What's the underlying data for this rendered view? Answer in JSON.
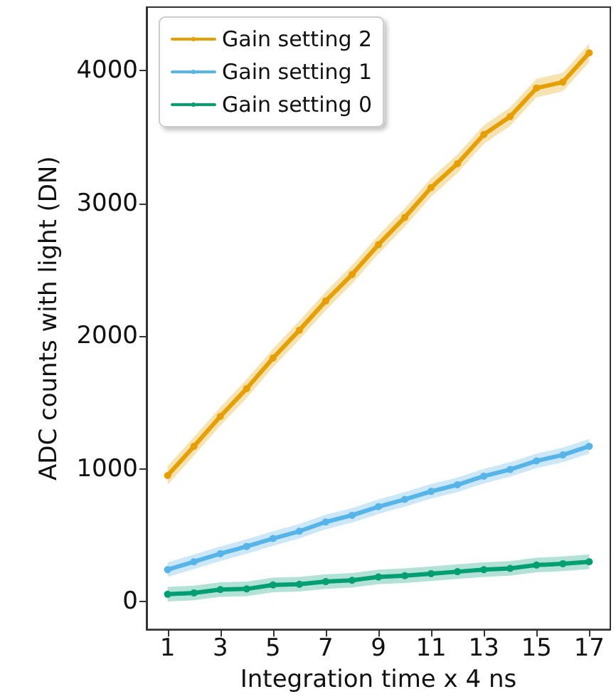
{
  "chart_data": {
    "type": "line",
    "xlabel": "Integration time x 4 ns",
    "ylabel": "ADC counts with light (DN)",
    "x": [
      1,
      2,
      3,
      4,
      5,
      6,
      7,
      8,
      9,
      10,
      11,
      12,
      13,
      14,
      15,
      16,
      17
    ],
    "xlim": [
      0.2,
      17.8
    ],
    "xticks": [
      1,
      3,
      5,
      7,
      9,
      11,
      13,
      15,
      17
    ],
    "ylim": [
      -210,
      4480
    ],
    "yticks": [
      0,
      1000,
      2000,
      3000,
      4000
    ],
    "grid": false,
    "legend": "top left",
    "marker": "circle",
    "line_style": "solid",
    "series": [
      {
        "name": "Gain setting 2",
        "color": "#e69f00",
        "values": [
          950,
          1170,
          1395,
          1605,
          1835,
          2045,
          2265,
          2465,
          2690,
          2895,
          3120,
          3300,
          3520,
          3655,
          3870,
          3915,
          4135
        ],
        "lower": [
          880,
          1100,
          1325,
          1535,
          1765,
          1975,
          2195,
          2395,
          2620,
          2825,
          3050,
          3230,
          3450,
          3585,
          3800,
          3845,
          4065
        ],
        "upper": [
          1020,
          1240,
          1465,
          1675,
          1905,
          2115,
          2335,
          2535,
          2760,
          2965,
          3190,
          3370,
          3590,
          3725,
          3940,
          3985,
          4205
        ]
      },
      {
        "name": "Gain setting 1",
        "color": "#56b4e9",
        "values": [
          240,
          300,
          360,
          415,
          475,
          530,
          600,
          650,
          715,
          770,
          830,
          880,
          945,
          995,
          1060,
          1105,
          1170
        ],
        "lower": [
          185,
          245,
          305,
          360,
          420,
          475,
          545,
          595,
          660,
          715,
          775,
          825,
          890,
          940,
          1005,
          1050,
          1115
        ],
        "upper": [
          295,
          355,
          415,
          470,
          530,
          585,
          655,
          705,
          770,
          825,
          885,
          935,
          1000,
          1050,
          1115,
          1160,
          1225
        ]
      },
      {
        "name": "Gain setting 0",
        "color": "#009e73",
        "values": [
          55,
          65,
          90,
          95,
          125,
          130,
          150,
          160,
          185,
          195,
          210,
          225,
          240,
          250,
          275,
          285,
          300
        ],
        "lower": [
          0,
          10,
          35,
          40,
          70,
          75,
          95,
          105,
          130,
          140,
          155,
          170,
          185,
          195,
          220,
          230,
          245
        ],
        "upper": [
          110,
          120,
          145,
          150,
          180,
          185,
          205,
          215,
          240,
          250,
          265,
          280,
          295,
          305,
          330,
          340,
          355
        ]
      }
    ]
  }
}
